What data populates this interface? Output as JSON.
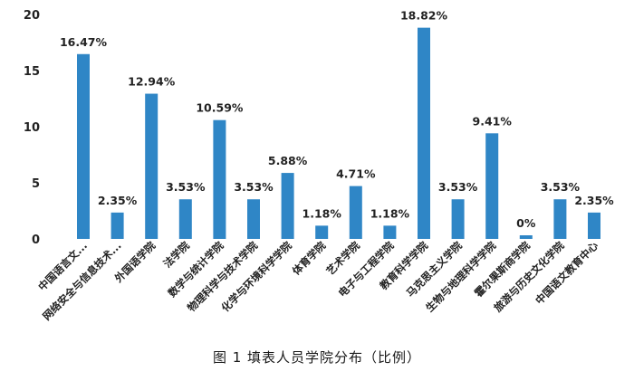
{
  "chart_data": {
    "type": "bar",
    "categories": [
      "中国语言文...",
      "网络安全与信息技术...",
      "外国语学院",
      "法学院",
      "数学与统计学院",
      "物理科学与技术学院",
      "化学与环境科学学院",
      "体育学院",
      "艺术学院",
      "电子与工程学院",
      "教育科学学院",
      "马克思主义学院",
      "生物与地理科学学院",
      "霍尔果斯商学院",
      "旅游与历史文化学院",
      "中国语文教育中心"
    ],
    "values": [
      16.47,
      2.35,
      12.94,
      3.53,
      10.59,
      3.53,
      5.88,
      1.18,
      4.71,
      1.18,
      18.82,
      3.53,
      9.41,
      0,
      3.53,
      2.35
    ],
    "data_labels": [
      "16.47%",
      "2.35%",
      "12.94%",
      "3.53%",
      "10.59%",
      "3.53%",
      "5.88%",
      "1.18%",
      "4.71%",
      "1.18%",
      "18.82%",
      "3.53%",
      "9.41%",
      "0%",
      "3.53%",
      "2.35%"
    ],
    "ylim": [
      0,
      20
    ],
    "yticks": [
      "0",
      "5",
      "10",
      "15",
      "20"
    ],
    "grid": false,
    "bar_color": "#2f86c6"
  },
  "caption": "图 1  填表人员学院分布（比例）"
}
